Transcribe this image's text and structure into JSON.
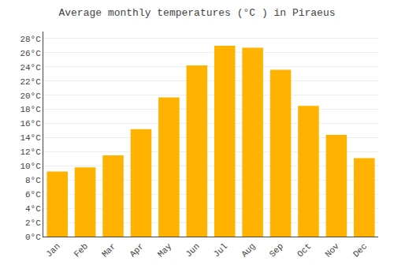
{
  "chart_data": {
    "type": "bar",
    "title": "Average monthly temperatures (°C ) in Piraeus",
    "categories": [
      "Jan",
      "Feb",
      "Mar",
      "Apr",
      "May",
      "Jun",
      "Jul",
      "Aug",
      "Sep",
      "Oct",
      "Nov",
      "Dec"
    ],
    "values": [
      9.2,
      9.8,
      11.5,
      15.2,
      19.7,
      24.2,
      27.0,
      26.7,
      23.6,
      18.5,
      14.4,
      11.1
    ],
    "color": "#FFB300",
    "ylim": [
      0,
      29
    ],
    "yticks": [
      {
        "value": 0,
        "label": "0°C"
      },
      {
        "value": 2,
        "label": "2°C"
      },
      {
        "value": 4,
        "label": "4°C"
      },
      {
        "value": 6,
        "label": "6°C"
      },
      {
        "value": 8,
        "label": "8°C"
      },
      {
        "value": 10,
        "label": "10°C"
      },
      {
        "value": 12,
        "label": "12°C"
      },
      {
        "value": 14,
        "label": "14°C"
      },
      {
        "value": 16,
        "label": "16°C"
      },
      {
        "value": 18,
        "label": "18°C"
      },
      {
        "value": 20,
        "label": "20°C"
      },
      {
        "value": 22,
        "label": "22°C"
      },
      {
        "value": 24,
        "label": "24°C"
      },
      {
        "value": 26,
        "label": "26°C"
      },
      {
        "value": 28,
        "label": "28°C"
      }
    ],
    "grid": true
  }
}
